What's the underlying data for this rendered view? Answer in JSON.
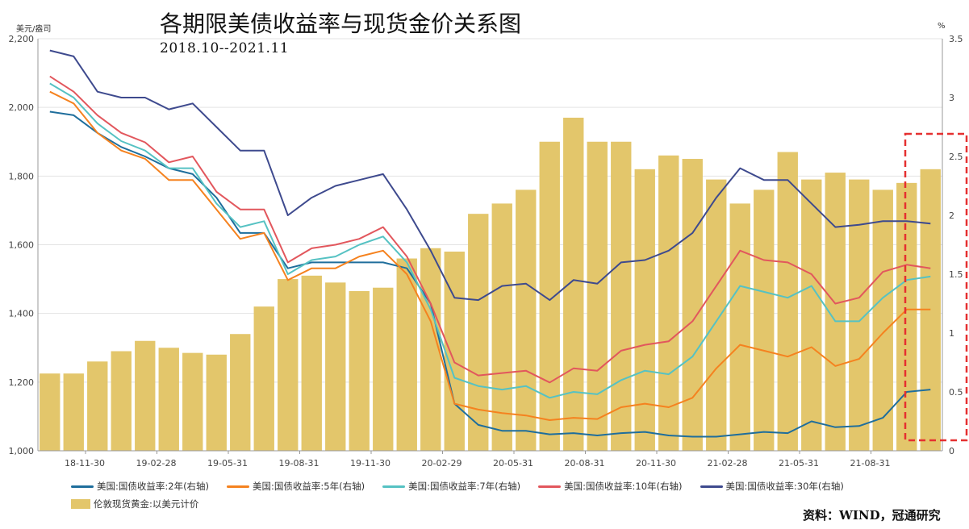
{
  "title": "各期限美债收益率与现货金价关系图",
  "subtitle": "2018.10--2021.11",
  "source": "资料：WIND，冠通研究",
  "colors": {
    "gold": "#E3C66B",
    "y2": "#1F6E9C",
    "y5": "#F5821F",
    "y7": "#56C2C3",
    "y10": "#E2575D",
    "y30": "#3E4A8E",
    "highlight": "#E53030"
  },
  "chart_data": {
    "type": "bar+line",
    "left_axis": {
      "unit": "美元/盎司",
      "ylim": [
        1000,
        2200
      ],
      "ticks": [
        "1,000",
        "1,200",
        "1,400",
        "1,600",
        "1,800",
        "2,000",
        "2,200"
      ]
    },
    "right_axis": {
      "unit": "%",
      "ylim": [
        0,
        3.5
      ],
      "ticks": [
        "0",
        "0.5",
        "1",
        "1.5",
        "2",
        "2.5",
        "3",
        "3.5"
      ]
    },
    "x_tick_labels": [
      "18-11-30",
      "19-02-28",
      "19-05-31",
      "19-08-31",
      "19-11-30",
      "20-02-29",
      "20-05-31",
      "20-08-31",
      "20-11-30",
      "21-02-28",
      "21-05-31",
      "21-08-31"
    ],
    "x_months": [
      "2018-10",
      "2018-11",
      "2018-12",
      "2019-01",
      "2019-02",
      "2019-03",
      "2019-04",
      "2019-05",
      "2019-06",
      "2019-07",
      "2019-08",
      "2019-09",
      "2019-10",
      "2019-11",
      "2019-12",
      "2020-01",
      "2020-02",
      "2020-03",
      "2020-04",
      "2020-05",
      "2020-06",
      "2020-07",
      "2020-08",
      "2020-09",
      "2020-10",
      "2020-11",
      "2020-12",
      "2021-01",
      "2021-02",
      "2021-03",
      "2021-04",
      "2021-05",
      "2021-06",
      "2021-07",
      "2021-08",
      "2021-09",
      "2021-10",
      "2021-11"
    ],
    "series": [
      {
        "name": "伦敦现货黄金:以美元计价",
        "axis": "left",
        "kind": "bar",
        "values": [
          1225,
          1225,
          1260,
          1290,
          1320,
          1300,
          1285,
          1280,
          1340,
          1420,
          1500,
          1510,
          1490,
          1465,
          1475,
          1560,
          1590,
          1580,
          1690,
          1720,
          1760,
          1900,
          1970,
          1900,
          1900,
          1820,
          1860,
          1850,
          1790,
          1720,
          1760,
          1870,
          1790,
          1810,
          1790,
          1760,
          1780,
          1820
        ]
      },
      {
        "name": "美国:国债收益率:2年(右轴)",
        "axis": "right",
        "kind": "line",
        "values": [
          2.88,
          2.85,
          2.7,
          2.58,
          2.5,
          2.4,
          2.35,
          2.15,
          1.85,
          1.85,
          1.55,
          1.6,
          1.6,
          1.6,
          1.6,
          1.55,
          1.25,
          0.4,
          0.22,
          0.17,
          0.17,
          0.14,
          0.15,
          0.13,
          0.15,
          0.16,
          0.13,
          0.12,
          0.12,
          0.14,
          0.16,
          0.15,
          0.25,
          0.2,
          0.21,
          0.28,
          0.5,
          0.52
        ]
      },
      {
        "name": "美国:国债收益率:5年(右轴)",
        "axis": "right",
        "kind": "line",
        "values": [
          3.05,
          2.95,
          2.7,
          2.55,
          2.48,
          2.3,
          2.3,
          2.05,
          1.8,
          1.85,
          1.45,
          1.55,
          1.55,
          1.65,
          1.7,
          1.5,
          1.1,
          0.4,
          0.35,
          0.32,
          0.3,
          0.26,
          0.28,
          0.27,
          0.37,
          0.4,
          0.37,
          0.45,
          0.7,
          0.9,
          0.85,
          0.8,
          0.88,
          0.72,
          0.78,
          1.0,
          1.2,
          1.2
        ]
      },
      {
        "name": "美国:国债收益率:7年(右轴)",
        "axis": "right",
        "kind": "line",
        "values": [
          3.12,
          3.0,
          2.78,
          2.63,
          2.55,
          2.4,
          2.4,
          2.1,
          1.9,
          1.95,
          1.5,
          1.62,
          1.65,
          1.75,
          1.82,
          1.6,
          1.2,
          0.62,
          0.55,
          0.52,
          0.55,
          0.45,
          0.5,
          0.48,
          0.6,
          0.68,
          0.65,
          0.8,
          1.1,
          1.4,
          1.35,
          1.3,
          1.4,
          1.1,
          1.1,
          1.3,
          1.45,
          1.48
        ]
      },
      {
        "name": "美国:国债收益率:10年(右轴)",
        "axis": "right",
        "kind": "line",
        "values": [
          3.18,
          3.05,
          2.85,
          2.7,
          2.62,
          2.45,
          2.5,
          2.2,
          2.05,
          2.05,
          1.6,
          1.72,
          1.75,
          1.8,
          1.9,
          1.65,
          1.25,
          0.75,
          0.64,
          0.66,
          0.68,
          0.58,
          0.7,
          0.68,
          0.85,
          0.9,
          0.93,
          1.1,
          1.4,
          1.7,
          1.62,
          1.6,
          1.5,
          1.25,
          1.3,
          1.52,
          1.58,
          1.55
        ]
      },
      {
        "name": "美国:国债收益率:30年(右轴)",
        "axis": "right",
        "kind": "line",
        "values": [
          3.4,
          3.35,
          3.05,
          3.0,
          3.0,
          2.9,
          2.95,
          2.75,
          2.55,
          2.55,
          2.0,
          2.15,
          2.25,
          2.3,
          2.35,
          2.05,
          1.7,
          1.3,
          1.28,
          1.4,
          1.42,
          1.28,
          1.45,
          1.42,
          1.6,
          1.62,
          1.7,
          1.85,
          2.15,
          2.4,
          2.3,
          2.3,
          2.1,
          1.9,
          1.92,
          1.95,
          1.95,
          1.93
        ]
      }
    ]
  }
}
